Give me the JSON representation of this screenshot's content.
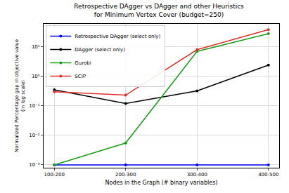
{
  "chart_data": {
    "type": "line",
    "title": "Retrospective DAgger vs DAgger and other Heuristics\nfor Minimum Vertex Cover (budget=250)",
    "x_label": "Nodes in the Graph (# binary variables)",
    "y_label": "Normalized Percentage gap in objective value\n(in log scale)",
    "categories": [
      "100-200",
      "200-300",
      "300-400",
      "400-500"
    ],
    "series": [
      {
        "name": "Retrospective DAgger (select only)",
        "color": "#0000ff",
        "values": [
          0.001,
          0.001,
          0.001,
          0.001
        ],
        "marker": "circle",
        "line_style": "solid"
      },
      {
        "name": "DAgger (select only)",
        "color": "#000000",
        "values": [
          0.35,
          0.12,
          0.32,
          2.4
        ],
        "marker": "circle",
        "line_style": "solid"
      },
      {
        "name": "Gurobi",
        "color": "#1a9e1a",
        "values": [
          0.001,
          0.0055,
          7,
          28
        ],
        "marker": "circle",
        "line_style": "solid"
      },
      {
        "name": "SCIP",
        "color": "#e0302a",
        "values": [
          0.3,
          0.23,
          8,
          38
        ],
        "marker": "circle",
        "line_style": "solid"
      }
    ],
    "ylim": [
      0.0008,
      60
    ],
    "yticks": [
      {
        "value": 0.001,
        "label": "10⁻³"
      },
      {
        "value": 0.01,
        "label": "10⁻²"
      },
      {
        "value": 0.1,
        "label": "10⁻¹"
      },
      {
        "value": 1,
        "label": "10⁰"
      },
      {
        "value": 10,
        "label": "10¹"
      }
    ],
    "log": "y",
    "grid": true,
    "legend": "upper left"
  }
}
